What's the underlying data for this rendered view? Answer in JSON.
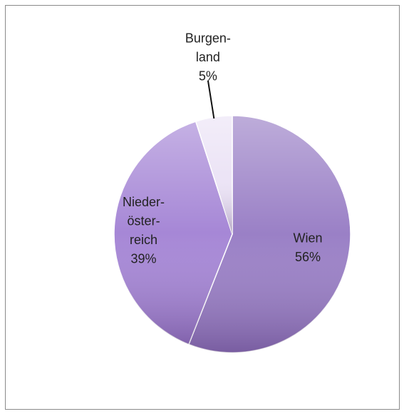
{
  "chart_data": {
    "type": "pie",
    "categories": [
      [
        "Wien"
      ],
      [
        "Nieder-",
        "öster-",
        "reich"
      ],
      [
        "Burgen-",
        "land"
      ]
    ],
    "values": [
      56,
      39,
      5
    ],
    "value_labels": [
      "56%",
      "39%",
      "5%"
    ],
    "colors": [
      "#9a80c6",
      "#a687d6",
      "#ece4f6"
    ],
    "start_angle": 0,
    "direction": "clockwise"
  }
}
